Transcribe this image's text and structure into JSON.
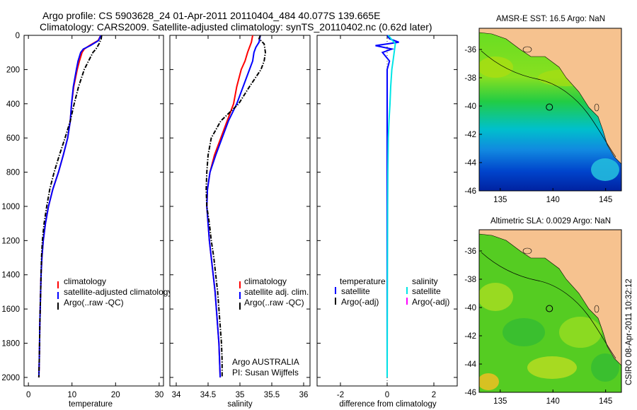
{
  "header": {
    "line1": "Argo profile: CS 5903628_24 01-Apr-2011 20110404_484 40.077S 139.665E",
    "line2": "Climatology: CARS2009. Satellite-adjusted climatology: synTS_20110402.nc (0.62d later)"
  },
  "footer_text": "CSIRO 08-Apr-2011 10:32:12",
  "colors": {
    "climatology": "#ff0000",
    "satellite": "#0000ff",
    "argo": "#000000",
    "satellite_sal": "#00e5e5",
    "argo_adj_sal": "#ff00ff",
    "land": "#f6c28f"
  },
  "chart_data": [
    {
      "type": "line",
      "xlabel": "temperature",
      "xlim": [
        -1,
        31
      ],
      "ylim": [
        2050,
        0
      ],
      "xticks": [
        0,
        10,
        20,
        30
      ],
      "yticks": [
        0,
        200,
        400,
        600,
        800,
        1000,
        1200,
        1400,
        1600,
        1800,
        2000
      ],
      "legend": [
        "climatology",
        "satellite-adjusted climatology",
        "Argo(..raw -QC)"
      ],
      "series": [
        {
          "name": "climatology",
          "depth": [
            0,
            30,
            60,
            80,
            100,
            150,
            200,
            300,
            400,
            500,
            600,
            700,
            800,
            900,
            1000,
            1100,
            1200,
            1300,
            1400,
            1500,
            1600,
            1700,
            1800,
            1900,
            2000
          ],
          "values": [
            16.6,
            16.0,
            14.0,
            12.8,
            12.3,
            11.7,
            11.2,
            10.4,
            9.9,
            9.6,
            9.0,
            8.0,
            6.9,
            5.6,
            4.6,
            3.9,
            3.4,
            3.1,
            2.9,
            2.8,
            2.7,
            2.6,
            2.55,
            2.5,
            2.4
          ]
        },
        {
          "name": "satellite-adjusted climatology",
          "depth": [
            0,
            30,
            60,
            80,
            100,
            150,
            200,
            300,
            400,
            500,
            600,
            700,
            800,
            900,
            1000,
            1100,
            1200,
            1300,
            1400,
            1500,
            1600,
            1700,
            1800,
            1900,
            2000
          ],
          "values": [
            16.6,
            16.1,
            14.2,
            12.6,
            12.0,
            11.4,
            11.0,
            10.3,
            9.9,
            9.6,
            9.0,
            8.0,
            6.9,
            5.6,
            4.6,
            3.9,
            3.4,
            3.1,
            2.9,
            2.8,
            2.7,
            2.6,
            2.55,
            2.5,
            2.4
          ]
        },
        {
          "name": "Argo(..raw -QC)",
          "depth": [
            0,
            20,
            50,
            80,
            100,
            150,
            200,
            300,
            400,
            500,
            600,
            700,
            800,
            900,
            1000,
            1100,
            1200,
            1300,
            1400,
            1500,
            1600,
            1700,
            1800,
            1900,
            2000
          ],
          "values": [
            16.8,
            16.7,
            16.2,
            15.5,
            14.8,
            13.8,
            12.8,
            11.5,
            10.5,
            9.6,
            8.4,
            7.1,
            5.9,
            4.9,
            4.2,
            3.6,
            3.2,
            3.0,
            2.9,
            2.8,
            2.7,
            2.6,
            2.55,
            2.5,
            2.4
          ]
        }
      ]
    },
    {
      "type": "line",
      "xlabel": "salinity",
      "xlim": [
        33.9,
        36.1
      ],
      "ylim": [
        2050,
        0
      ],
      "xticks": [
        34,
        34.5,
        35,
        35.5,
        36
      ],
      "legend": [
        "climatology",
        "satellite adj. clim.",
        "Argo(..raw -QC)"
      ],
      "annotation": [
        "Argo AUSTRALIA",
        "PI: Susan Wijffels"
      ],
      "series": [
        {
          "name": "climatology",
          "depth": [
            0,
            40,
            70,
            100,
            150,
            200,
            300,
            400,
            500,
            600,
            700,
            800,
            900,
            1000,
            1100,
            1200,
            1300,
            1400,
            1500,
            1600,
            1700,
            1800,
            1900,
            2000
          ],
          "values": [
            35.2,
            35.18,
            35.15,
            35.12,
            35.08,
            35.02,
            34.95,
            34.9,
            34.8,
            34.7,
            34.6,
            34.53,
            34.49,
            34.48,
            34.5,
            34.52,
            34.55,
            34.58,
            34.61,
            34.63,
            34.65,
            34.67,
            34.68,
            34.69
          ]
        },
        {
          "name": "satellite adj. clim.",
          "depth": [
            0,
            40,
            70,
            100,
            150,
            200,
            300,
            400,
            500,
            600,
            700,
            800,
            900,
            1000,
            1100,
            1200,
            1300,
            1400,
            1500,
            1600,
            1700,
            1800,
            1900,
            2000
          ],
          "values": [
            35.32,
            35.3,
            35.25,
            35.22,
            35.2,
            35.15,
            35.05,
            34.95,
            34.82,
            34.72,
            34.62,
            34.53,
            34.49,
            34.48,
            34.5,
            34.52,
            34.55,
            34.58,
            34.61,
            34.63,
            34.65,
            34.67,
            34.68,
            34.69
          ]
        },
        {
          "name": "Argo(..raw -QC)",
          "depth": [
            0,
            20,
            50,
            100,
            150,
            200,
            300,
            400,
            500,
            600,
            700,
            800,
            900,
            1000,
            1100,
            1200,
            1300,
            1400,
            1500,
            1600,
            1700,
            1800,
            1900,
            2000
          ],
          "values": [
            35.32,
            35.3,
            35.38,
            35.4,
            35.38,
            35.33,
            35.15,
            34.98,
            34.7,
            34.55,
            34.5,
            34.48,
            34.47,
            34.48,
            34.52,
            34.55,
            34.59,
            34.62,
            34.65,
            34.67,
            34.69,
            34.71,
            34.72,
            34.72
          ]
        }
      ]
    },
    {
      "type": "line",
      "xlabel": "difference from climatology",
      "xlim": [
        -3,
        3
      ],
      "ylim": [
        2050,
        0
      ],
      "xticks": [
        -2,
        0,
        2
      ],
      "legend_temperature": {
        "heading": "temperature",
        "items": [
          "satellite",
          "Argo(-adj)"
        ]
      },
      "legend_salinity": {
        "heading": "salinity",
        "items": [
          "satellite",
          "Argo(-adj)"
        ]
      },
      "series": [
        {
          "name": "temperature satellite",
          "depth": [
            0,
            20,
            40,
            60,
            80,
            100,
            150,
            200,
            300,
            400,
            600,
            800,
            1000,
            1500,
            2000
          ],
          "values": [
            0.0,
            0.1,
            0.5,
            -0.5,
            0.2,
            -0.2,
            0.1,
            0.0,
            0.0,
            0.0,
            0.0,
            0.0,
            0.0,
            0.0,
            0.0
          ]
        },
        {
          "name": "salinity satellite",
          "depth": [
            0,
            50,
            100,
            150,
            200,
            300,
            400,
            500,
            600,
            800,
            1000,
            1500,
            2000
          ],
          "values": [
            0.05,
            0.35,
            0.3,
            0.25,
            0.2,
            0.15,
            0.12,
            0.08,
            0.05,
            0.03,
            0.02,
            0.01,
            0.0
          ]
        }
      ]
    }
  ],
  "maps": [
    {
      "title": "AMSR-E SST: 16.5 Argo: NaN",
      "lon_ticks": [
        135,
        140,
        145
      ],
      "lat_ticks": [
        -36,
        -38,
        -40,
        -42,
        -44,
        -46
      ],
      "lon_range": [
        133,
        146.5
      ],
      "lat_range": [
        -46,
        -34.5
      ],
      "argo_position": [
        139.665,
        -40.077
      ]
    },
    {
      "title": "Altimetric SLA: 0.0029 Argo: NaN",
      "lon_ticks": [
        135,
        140,
        145
      ],
      "lat_ticks": [
        -36,
        -38,
        -40,
        -42,
        -44,
        -46
      ],
      "lon_range": [
        133,
        146.5
      ],
      "lat_range": [
        -46,
        -34.5
      ],
      "argo_position": [
        139.665,
        -40.077
      ]
    }
  ]
}
